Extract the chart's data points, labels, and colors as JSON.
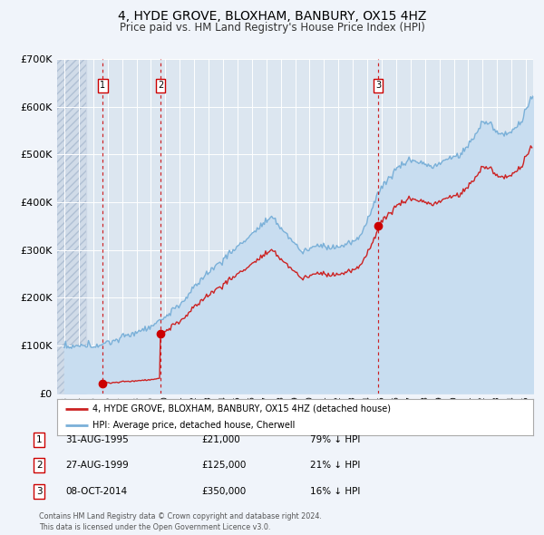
{
  "title": "4, HYDE GROVE, BLOXHAM, BANBURY, OX15 4HZ",
  "subtitle": "Price paid vs. HM Land Registry's House Price Index (HPI)",
  "ylim": [
    0,
    700000
  ],
  "yticks": [
    0,
    100000,
    200000,
    300000,
    400000,
    500000,
    600000,
    700000
  ],
  "ytick_labels": [
    "£0",
    "£100K",
    "£200K",
    "£300K",
    "£400K",
    "£500K",
    "£600K",
    "£700K"
  ],
  "background_color": "#f0f4fa",
  "plot_bg_color": "#dce6f0",
  "hatch_color": "#c8d4e4",
  "grid_color": "#ffffff",
  "sale_dates": [
    1995.667,
    1999.667,
    2014.75
  ],
  "sale_prices": [
    21000,
    125000,
    350000
  ],
  "sale_labels": [
    "1",
    "2",
    "3"
  ],
  "vline_color": "#cc0000",
  "sale_dot_color": "#cc0000",
  "hpi_line_color": "#7ab0d8",
  "hpi_fill_color": "#c8ddf0",
  "price_line_color": "#cc2222",
  "legend_labels": [
    "4, HYDE GROVE, BLOXHAM, BANBURY, OX15 4HZ (detached house)",
    "HPI: Average price, detached house, Cherwell"
  ],
  "table_data": [
    [
      "1",
      "31-AUG-1995",
      "£21,000",
      "79% ↓ HPI"
    ],
    [
      "2",
      "27-AUG-1999",
      "£125,000",
      "21% ↓ HPI"
    ],
    [
      "3",
      "08-OCT-2014",
      "£350,000",
      "16% ↓ HPI"
    ]
  ],
  "footnote": "Contains HM Land Registry data © Crown copyright and database right 2024.\nThis data is licensed under the Open Government Licence v3.0.",
  "xmin": 1992.5,
  "xmax": 2025.5
}
